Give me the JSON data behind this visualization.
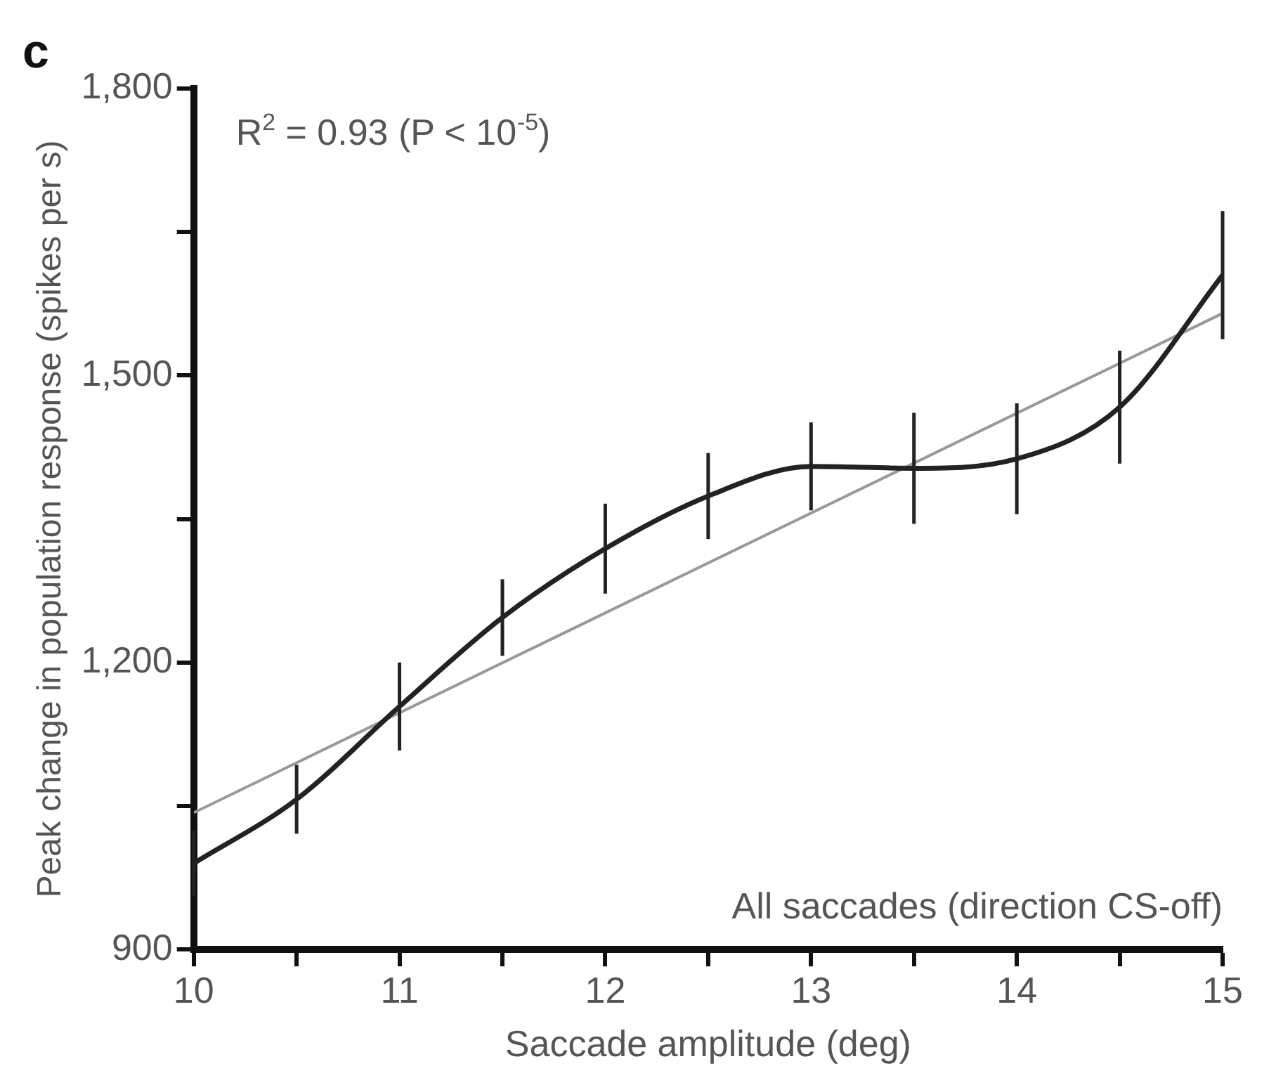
{
  "chart_data": {
    "type": "line",
    "xlabel": "Saccade amplitude (deg)",
    "ylabel": "Peak change in population response (spikes per s)",
    "annotations": [
      "c",
      "R$^{2}$ = 0.93 (P < 10$^{-5}$)",
      "All saccades (direction CS-off)"
    ],
    "xlim": [
      10,
      15
    ],
    "xticks": [
      10,
      {
        "value": 10.5,
        "label": null
      },
      11,
      {
        "value": 11.5,
        "label": null
      },
      12,
      {
        "value": 12.5,
        "label": null
      },
      13,
      {
        "value": 13.5,
        "label": null
      },
      14,
      {
        "value": 14.5,
        "label": null
      },
      15
    ],
    "ylim": [
      900,
      1800
    ],
    "yticks": [
      {
        "value": 900,
        "label": "900"
      },
      {
        "value": 1050,
        "label": null
      },
      {
        "value": 1200,
        "label": "1,200"
      },
      {
        "value": 1350,
        "label": null
      },
      {
        "value": 1500,
        "label": "1,500"
      },
      {
        "value": 1650,
        "label": null
      },
      {
        "value": 1800,
        "label": "1,800"
      }
    ],
    "grid": false,
    "legend": false,
    "marker": "none",
    "line_style": "solid",
    "series": [
      {
        "color": "#222222",
        "x": [
          10,
          10.5,
          11,
          11.5,
          12,
          12.5,
          13,
          13.5,
          14,
          14.5,
          15
        ],
        "values": [
          990,
          1057,
          1154,
          1247,
          1319,
          1374,
          1405,
          1403,
          1413,
          1467,
          1605
        ],
        "errors": [
          34,
          36,
          46,
          40,
          47,
          45,
          46,
          58,
          58,
          59,
          67
        ]
      },
      {
        "type": "line",
        "color": "#999999",
        "x": [
          10,
          15
        ],
        "values": [
          1043,
          1565
        ]
      }
    ]
  }
}
